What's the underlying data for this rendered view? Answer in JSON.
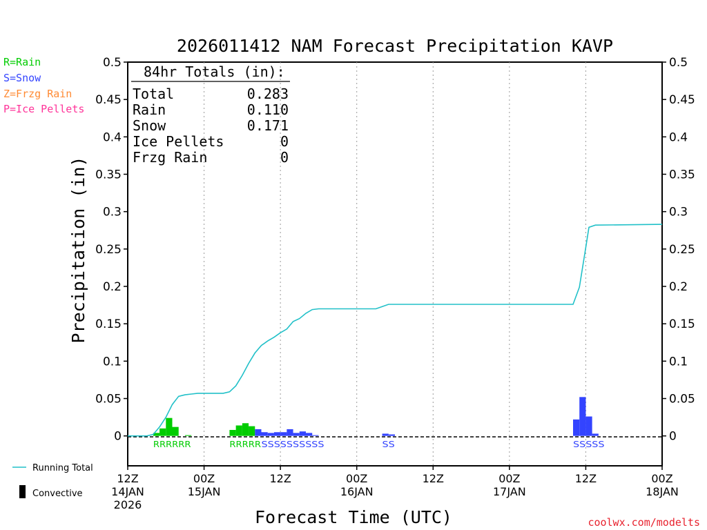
{
  "chart_data": {
    "type": "bar",
    "title": "2026011412 NAM Forecast Precipitation KAVP",
    "ylabel": "Precipitation (in)",
    "xlabel": "Forecast Time (UTC)",
    "ylim": [
      -0.04,
      0.5
    ],
    "xlim_hours": [
      0,
      84
    ],
    "y_ticks": [
      0,
      0.05,
      0.1,
      0.15,
      0.2,
      0.25,
      0.3,
      0.35,
      0.4,
      0.45,
      0.5
    ],
    "y_tick_labels": [
      "0",
      "0.05",
      "0.1",
      "0.15",
      "0.2",
      "0.25",
      "0.3",
      "0.35",
      "0.4",
      "0.45",
      "0.5"
    ],
    "x_ticks": [
      {
        "hour": 0,
        "lines": [
          "12Z",
          "14JAN",
          "2026"
        ]
      },
      {
        "hour": 12,
        "lines": [
          "00Z",
          "15JAN"
        ]
      },
      {
        "hour": 24,
        "lines": [
          "12Z",
          ""
        ]
      },
      {
        "hour": 36,
        "lines": [
          "00Z",
          "16JAN"
        ]
      },
      {
        "hour": 48,
        "lines": [
          "12Z",
          ""
        ]
      },
      {
        "hour": 60,
        "lines": [
          "00Z",
          "17JAN"
        ]
      },
      {
        "hour": 72,
        "lines": [
          "12Z",
          ""
        ]
      },
      {
        "hour": 84,
        "lines": [
          "00Z",
          "18JAN"
        ]
      }
    ],
    "grid": "vertical dotted at tick hours",
    "legend": {
      "types": [
        {
          "text": "R=Rain",
          "color": "#00cc00"
        },
        {
          "text": "S=Snow",
          "color": "#3344ff"
        },
        {
          "text": "Z=Frzg Rain",
          "color": "#ff8a33"
        },
        {
          "text": "P=Ice Pellets",
          "color": "#ff3399"
        }
      ],
      "running_total_label": "Running Total",
      "convective_label": "Convective",
      "running_total_color": "#20c0c8"
    },
    "totals": {
      "heading": "84hr Totals (in):",
      "rows": [
        {
          "label": "Total",
          "value": "0.283"
        },
        {
          "label": "Rain",
          "value": "0.110"
        },
        {
          "label": "Snow",
          "value": "0.171"
        },
        {
          "label": "Ice Pellets",
          "value": "0"
        },
        {
          "label": "Frzg Rain",
          "value": "0"
        }
      ]
    },
    "series": [
      {
        "name": "Precipitation by type",
        "bars": [
          {
            "hour": 4.5,
            "value": 0.004,
            "type": "R"
          },
          {
            "hour": 5.5,
            "value": 0.01,
            "type": "R"
          },
          {
            "hour": 6.5,
            "value": 0.024,
            "type": "R"
          },
          {
            "hour": 7.5,
            "value": 0.012,
            "type": "R"
          },
          {
            "hour": 9.5,
            "value": 0.001,
            "type": "R"
          },
          {
            "hour": 16.5,
            "value": 0.008,
            "type": "R"
          },
          {
            "hour": 17.5,
            "value": 0.014,
            "type": "R"
          },
          {
            "hour": 18.5,
            "value": 0.017,
            "type": "R"
          },
          {
            "hour": 19.5,
            "value": 0.013,
            "type": "R"
          },
          {
            "hour": 20.5,
            "value": 0.009,
            "type": "S"
          },
          {
            "hour": 21.5,
            "value": 0.005,
            "type": "S"
          },
          {
            "hour": 22.5,
            "value": 0.004,
            "type": "S"
          },
          {
            "hour": 23.5,
            "value": 0.005,
            "type": "S"
          },
          {
            "hour": 24.5,
            "value": 0.005,
            "type": "S"
          },
          {
            "hour": 25.5,
            "value": 0.009,
            "type": "S"
          },
          {
            "hour": 26.5,
            "value": 0.004,
            "type": "S"
          },
          {
            "hour": 27.5,
            "value": 0.006,
            "type": "S"
          },
          {
            "hour": 28.5,
            "value": 0.004,
            "type": "S"
          },
          {
            "hour": 29.5,
            "value": 0.001,
            "type": "S"
          },
          {
            "hour": 40.5,
            "value": 0.003,
            "type": "S"
          },
          {
            "hour": 41.5,
            "value": 0.002,
            "type": "S"
          },
          {
            "hour": 70.5,
            "value": 0.022,
            "type": "S"
          },
          {
            "hour": 71.5,
            "value": 0.052,
            "type": "S"
          },
          {
            "hour": 72.5,
            "value": 0.026,
            "type": "S"
          },
          {
            "hour": 73.5,
            "value": 0.003,
            "type": "S"
          }
        ]
      },
      {
        "name": "Running Total",
        "points": [
          [
            0,
            0
          ],
          [
            3,
            0
          ],
          [
            4,
            0.002
          ],
          [
            5,
            0.012
          ],
          [
            6,
            0.025
          ],
          [
            7,
            0.042
          ],
          [
            8,
            0.053
          ],
          [
            9,
            0.055
          ],
          [
            10,
            0.056
          ],
          [
            11,
            0.057
          ],
          [
            15,
            0.057
          ],
          [
            16,
            0.059
          ],
          [
            17,
            0.067
          ],
          [
            18,
            0.081
          ],
          [
            19,
            0.097
          ],
          [
            20,
            0.111
          ],
          [
            21,
            0.121
          ],
          [
            22,
            0.127
          ],
          [
            23,
            0.132
          ],
          [
            24,
            0.138
          ],
          [
            25,
            0.143
          ],
          [
            26,
            0.153
          ],
          [
            27,
            0.157
          ],
          [
            28,
            0.164
          ],
          [
            29,
            0.169
          ],
          [
            30,
            0.17
          ],
          [
            34,
            0.17
          ],
          [
            39,
            0.17
          ],
          [
            40,
            0.173
          ],
          [
            41,
            0.176
          ],
          [
            42,
            0.176
          ],
          [
            60,
            0.176
          ],
          [
            70,
            0.176
          ],
          [
            71,
            0.199
          ],
          [
            72,
            0.252
          ],
          [
            72.5,
            0.279
          ],
          [
            73.5,
            0.282
          ],
          [
            84,
            0.283
          ]
        ]
      }
    ],
    "type_strings": [
      {
        "text": "RRRRRR",
        "start_hour": 4,
        "color": "#00cc00"
      },
      {
        "text": "RRRRR",
        "start_hour": 16,
        "color": "#00cc00"
      },
      {
        "text": "SSSSSSSSSS",
        "start_hour": 21,
        "color": "#3344ff"
      },
      {
        "text": "SS",
        "start_hour": 40,
        "color": "#3344ff"
      },
      {
        "text": "SSSSS",
        "start_hour": 70,
        "color": "#3344ff"
      }
    ]
  },
  "credit": "coolwx.com/modelts"
}
